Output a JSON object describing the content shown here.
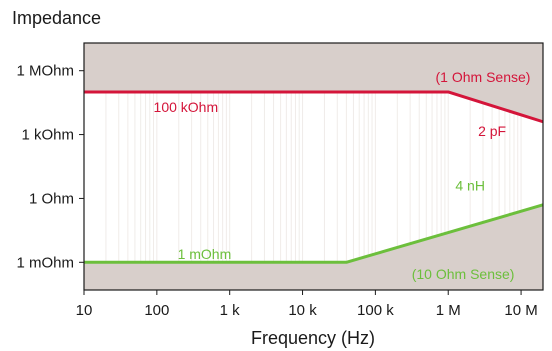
{
  "chart_data": {
    "type": "line",
    "title": "",
    "ylabel": "Impedance",
    "xlabel": "Frequency (Hz)",
    "x_scale": "log",
    "y_scale": "log",
    "xlim": [
      10,
      20000000
    ],
    "ylim": [
      5e-05,
      20000000
    ],
    "x_ticks": [
      {
        "value": 10,
        "label": "10"
      },
      {
        "value": 100,
        "label": "100"
      },
      {
        "value": 1000,
        "label": "1 k"
      },
      {
        "value": 10000,
        "label": "10 k"
      },
      {
        "value": 100000,
        "label": "100 k"
      },
      {
        "value": 1000000,
        "label": "1 M"
      },
      {
        "value": 10000000,
        "label": "10 M"
      }
    ],
    "y_ticks": [
      {
        "value": 1000000,
        "label": "1 MOhm"
      },
      {
        "value": 1000,
        "label": "1 kOhm"
      },
      {
        "value": 1,
        "label": "1 Ohm"
      },
      {
        "value": 0.001,
        "label": "1 mOhm"
      }
    ],
    "grid": "vertical minor gridlines",
    "series": [
      {
        "name": "(1 Ohm Sense)",
        "color": "#d4153a",
        "x": [
          10,
          1000000,
          20000000
        ],
        "y": [
          100000,
          100000,
          4000
        ]
      },
      {
        "name": "(10 Ohm Sense)",
        "color": "#6cbf3c",
        "x": [
          10,
          40000,
          20000000
        ],
        "y": [
          0.001,
          0.001,
          0.5
        ]
      }
    ],
    "annotations": [
      {
        "text": "(1 Ohm Sense)",
        "x": 3000000,
        "y": 500000,
        "color": "#d4153a"
      },
      {
        "text": "100 kOhm",
        "x": 250,
        "y": 20000,
        "color": "#d4153a"
      },
      {
        "text": "2 pF",
        "x": 4000000,
        "y": 1500,
        "color": "#d4153a"
      },
      {
        "text": "4 nH",
        "x": 2000000,
        "y": 4,
        "color": "#6cbf3c"
      },
      {
        "text": "1 mOhm",
        "x": 450,
        "y": 0.0025,
        "color": "#6cbf3c"
      },
      {
        "text": "(10 Ohm Sense)",
        "x": 1600000,
        "y": 0.00028,
        "color": "#6cbf3c"
      }
    ],
    "region_fill": "#d8cfcb",
    "grid_color": "#f0ece9"
  }
}
